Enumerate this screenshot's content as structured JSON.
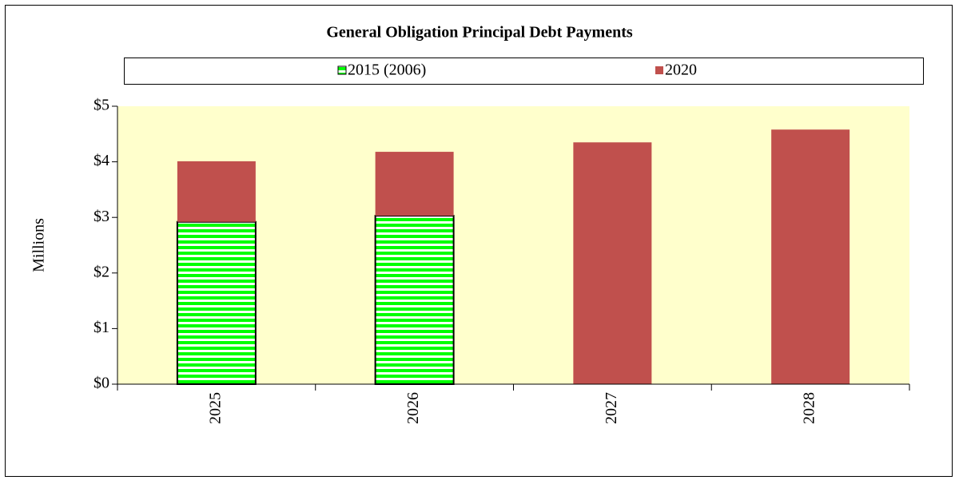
{
  "chart_data": {
    "type": "stacked_bar",
    "title": "General Obligation Principal Debt Payments",
    "y_label": "Millions",
    "categories": [
      "2025",
      "2026",
      "2027",
      "2028"
    ],
    "series": [
      {
        "name": "2015 (2006)",
        "color": "#00ff00",
        "pattern": "horizontal-stripes",
        "values": [
          2.92,
          3.03,
          0,
          0
        ]
      },
      {
        "name": "2020",
        "color": "#c0504d",
        "values": [
          1.09,
          1.15,
          4.35,
          4.58
        ]
      }
    ],
    "ylim": [
      0,
      5
    ],
    "yticks": [
      {
        "value": 0,
        "label": "$0"
      },
      {
        "value": 1,
        "label": "$1"
      },
      {
        "value": 2,
        "label": "$2"
      },
      {
        "value": 3,
        "label": "$3"
      },
      {
        "value": 4,
        "label": "$4"
      },
      {
        "value": 5,
        "label": "$5"
      }
    ],
    "legend": "top",
    "plot_background": "#ffffcc"
  }
}
